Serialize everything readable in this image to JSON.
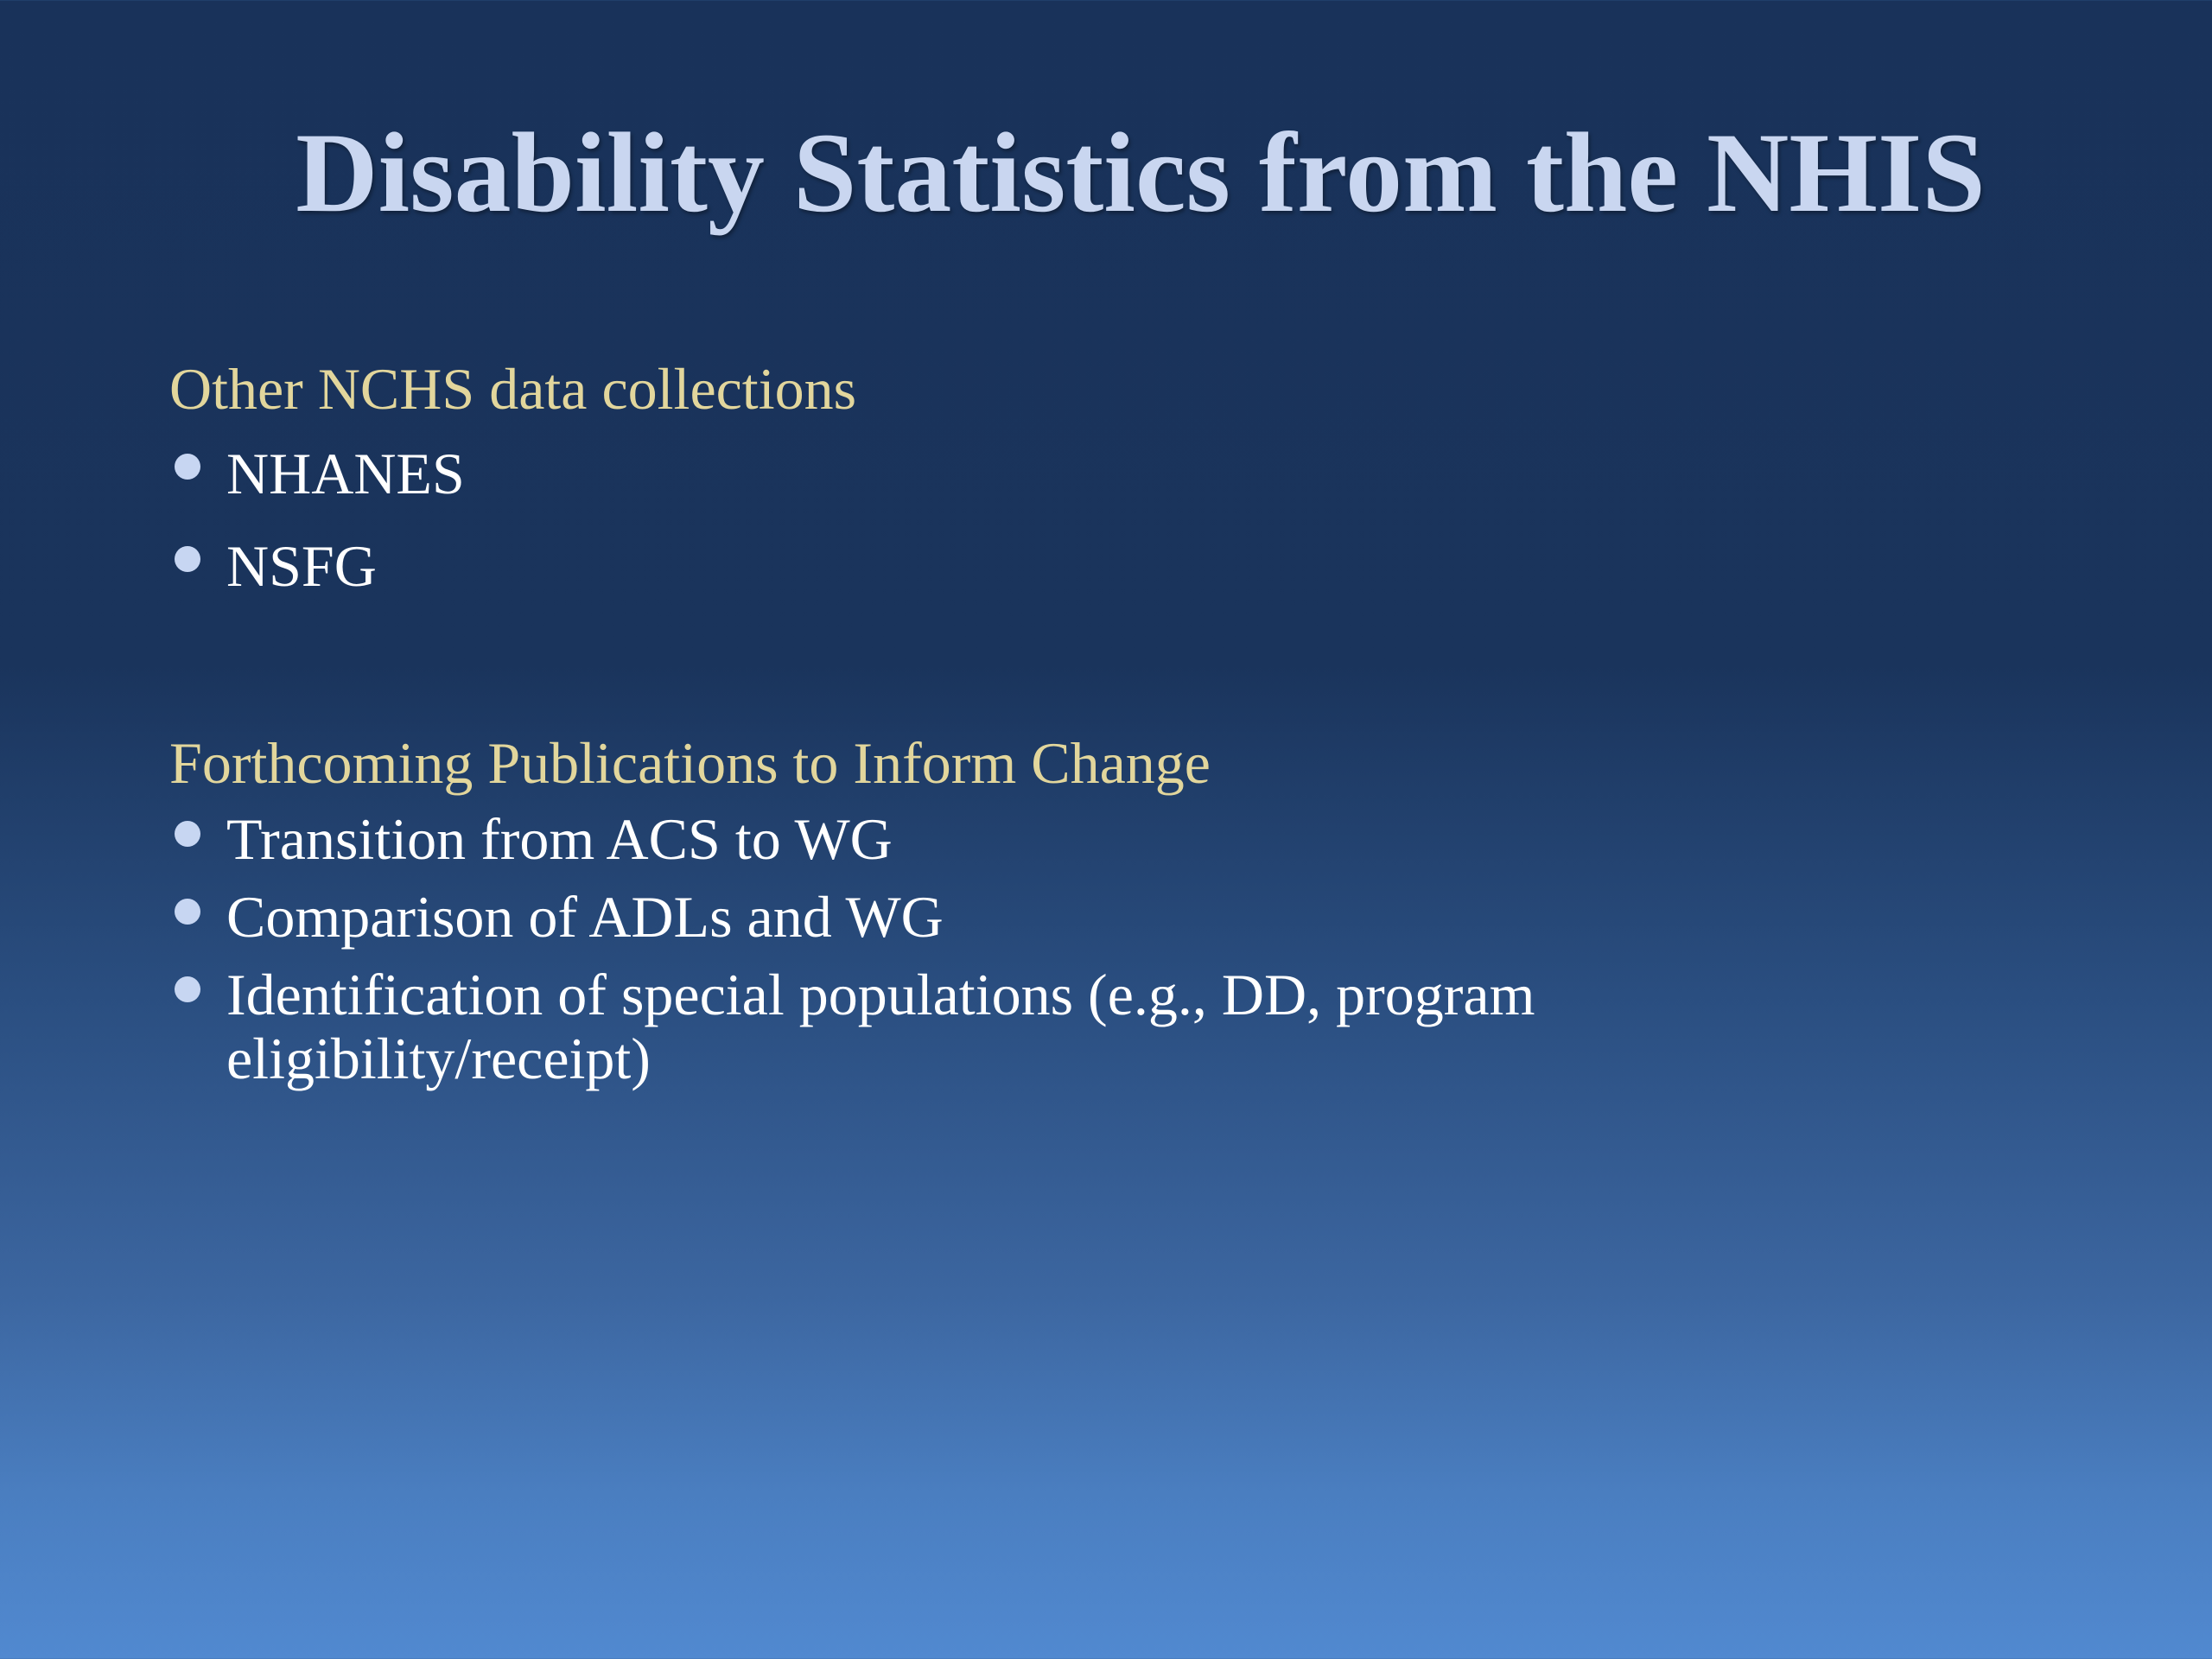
{
  "slide": {
    "title": "Disability Statistics from the NHIS",
    "sections": [
      {
        "heading": "Other NCHS data collections",
        "items": [
          "NHANES",
          "NSFG"
        ]
      },
      {
        "heading": "Forthcoming Publications to Inform Change",
        "items": [
          "Transition from ACS to WG",
          "Comparison of ADLs and WG",
          "Identification of special populations (e.g., DD, program eligibility/receipt)"
        ]
      }
    ]
  },
  "colors": {
    "title": "#c9d6f0",
    "heading": "#e2d69c",
    "body_text": "#ffffff",
    "bullet": "#c7d6f2",
    "background_top": "#19325a",
    "background_bottom": "#5189d0"
  }
}
